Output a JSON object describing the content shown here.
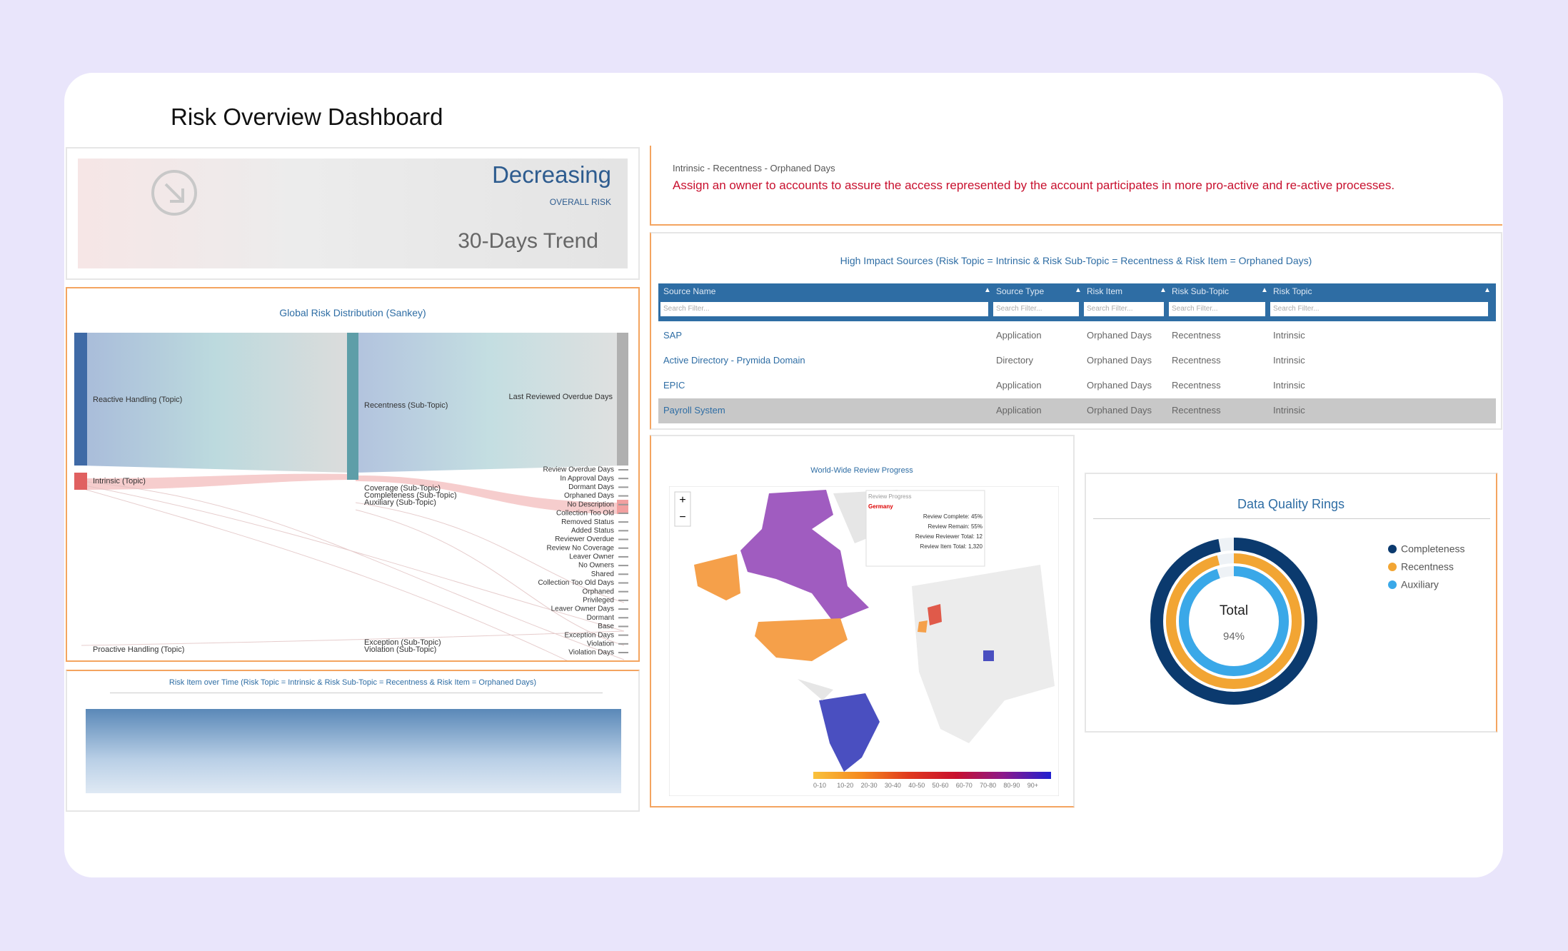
{
  "header": {
    "title": "Risk Overview Dashboard"
  },
  "trend": {
    "status": "Decreasing",
    "metric": "OVERALL RISK",
    "period": "30-Days Trend"
  },
  "recommendation": {
    "path": "Intrinsic - Recentness - Orphaned Days",
    "text": "Assign an owner to accounts to assure the access represented by the account participates in more pro-active and re-active processes."
  },
  "sankey": {
    "title": "Global Risk Distribution (Sankey)",
    "topics": [
      "Reactive Handling (Topic)",
      "Intrinsic (Topic)",
      "Proactive Handling (Topic)"
    ],
    "subtopics": [
      "Recentness (Sub-Topic)",
      "Coverage (Sub-Topic)",
      "Completeness (Sub-Topic)",
      "Auxiliary (Sub-Topic)",
      "Exception (Sub-Topic)",
      "Violation (Sub-Topic)"
    ],
    "top_item": "Last Reviewed Overdue Days",
    "items": [
      "Review Overdue Days",
      "In Approval Days",
      "Dormant Days",
      "Orphaned Days",
      "No Description",
      "Collection Too Old",
      "Removed Status",
      "Added Status",
      "Reviewer Overdue",
      "Review No Coverage",
      "Leaver Owner",
      "No Owners",
      "Shared",
      "Collection Too Old Days",
      "Orphaned",
      "Privileged",
      "Leaver Owner Days",
      "Dormant",
      "Base",
      "Exception Days",
      "Violation",
      "Violation Days"
    ]
  },
  "timeline": {
    "title": "Risk Item over Time (Risk Topic = Intrinsic & Risk Sub-Topic = Recentness & Risk Item = Orphaned Days)"
  },
  "table": {
    "title": "High Impact Sources (Risk Topic = Intrinsic & Risk Sub-Topic = Recentness & Risk Item = Orphaned Days)",
    "columns": [
      "Source Name",
      "Source Type",
      "Risk Item",
      "Risk Sub-Topic",
      "Risk Topic"
    ],
    "search_placeholder": "Search Filter...",
    "rows": [
      [
        "SAP",
        "Application",
        "Orphaned Days",
        "Recentness",
        "Intrinsic"
      ],
      [
        "Active Directory - Prymida Domain",
        "Directory",
        "Orphaned Days",
        "Recentness",
        "Intrinsic"
      ],
      [
        "EPIC",
        "Application",
        "Orphaned Days",
        "Recentness",
        "Intrinsic"
      ],
      [
        "Payroll System",
        "Application",
        "Orphaned Days",
        "Recentness",
        "Intrinsic"
      ]
    ]
  },
  "map": {
    "title": "World-Wide Review Progress",
    "tooltip": {
      "title": "Review Progress",
      "country": "Germany",
      "lines": [
        "Review Complete: 45%",
        "Review Remain: 55%",
        "Review Reviewer Total: 12",
        "Review Item Total: 1,320"
      ]
    },
    "legend": [
      "0-10",
      "10-20",
      "20-30",
      "30-40",
      "40-50",
      "50-60",
      "60-70",
      "70-80",
      "80-90",
      "90+"
    ]
  },
  "chart_data": {
    "type": "rings",
    "title": "Data Quality Rings",
    "center_label": "Total",
    "center_value": "94%",
    "range": [
      0,
      100
    ],
    "series": [
      {
        "name": "Completeness",
        "color": "#0b3a6e",
        "value": 97
      },
      {
        "name": "Recentness",
        "color": "#f2a533",
        "value": 96
      },
      {
        "name": "Auxiliary",
        "color": "#3aa8e8",
        "value": 95
      }
    ]
  }
}
